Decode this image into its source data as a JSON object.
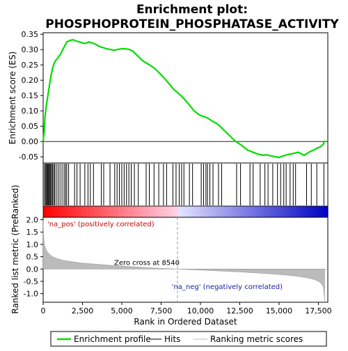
{
  "chart_data": {
    "type": "line",
    "title_line1": "Enrichment plot:",
    "title_line2": "PHOSPHOPROTEIN_PHOSPHATASE_ACTIVITY",
    "es_panel": {
      "ylabel": "Enrichment score (ES)",
      "ylim": [
        -0.07,
        0.355
      ],
      "yticks": [
        -0.05,
        0.0,
        0.05,
        0.1,
        0.15,
        0.2,
        0.25,
        0.3,
        0.35
      ],
      "ytick_labels": [
        "-0.05",
        "0.00",
        "0.05",
        "0.10",
        "0.15",
        "0.20",
        "0.25",
        "0.30",
        "0.35"
      ],
      "series": [
        {
          "color": "#00dd00",
          "x": [
            0,
            60,
            120,
            180,
            240,
            300,
            360,
            420,
            480,
            540,
            600,
            700,
            800,
            900,
            1000,
            1100,
            1200,
            1300,
            1400,
            1500,
            1700,
            1900,
            2100,
            2300,
            2500,
            2700,
            2900,
            3100,
            3300,
            3500,
            3700,
            3900,
            4100,
            4300,
            4500,
            4700,
            4900,
            5100,
            5300,
            5500,
            5700,
            5900,
            6100,
            6300,
            6500,
            6700,
            6900,
            7100,
            7300,
            7500,
            7700,
            7900,
            8100,
            8300,
            8540,
            8800,
            9000,
            9200,
            9400,
            9600,
            9800,
            10000,
            10200,
            10400,
            10600,
            10800,
            11000,
            11200,
            11400,
            11600,
            11800,
            12000,
            12200,
            12400,
            12600,
            12800,
            13000,
            13200,
            13400,
            13600,
            13800,
            14000,
            14200,
            14400,
            14600,
            14800,
            15000,
            15200,
            15400,
            15600,
            15800,
            16000,
            16200,
            16400,
            16600,
            16800,
            17000,
            17200,
            17400,
            17600,
            17800,
            17900
          ],
          "y": [
            0.0,
            0.03,
            0.08,
            0.11,
            0.13,
            0.15,
            0.17,
            0.19,
            0.21,
            0.225,
            0.24,
            0.255,
            0.265,
            0.27,
            0.278,
            0.285,
            0.295,
            0.305,
            0.315,
            0.325,
            0.33,
            0.332,
            0.328,
            0.325,
            0.322,
            0.32,
            0.325,
            0.322,
            0.318,
            0.312,
            0.308,
            0.305,
            0.302,
            0.3,
            0.298,
            0.3,
            0.302,
            0.303,
            0.302,
            0.3,
            0.295,
            0.285,
            0.275,
            0.265,
            0.258,
            0.252,
            0.245,
            0.238,
            0.228,
            0.218,
            0.207,
            0.195,
            0.183,
            0.17,
            0.16,
            0.148,
            0.137,
            0.125,
            0.113,
            0.1,
            0.092,
            0.085,
            0.082,
            0.078,
            0.072,
            0.065,
            0.06,
            0.052,
            0.042,
            0.032,
            0.022,
            0.012,
            0.002,
            -0.005,
            -0.012,
            -0.02,
            -0.028,
            -0.032,
            -0.036,
            -0.04,
            -0.043,
            -0.045,
            -0.043,
            -0.046,
            -0.048,
            -0.05,
            -0.052,
            -0.048,
            -0.045,
            -0.042,
            -0.04,
            -0.038,
            -0.035,
            -0.04,
            -0.045,
            -0.038,
            -0.032,
            -0.028,
            -0.022,
            -0.018,
            -0.01,
            0.003
          ]
        }
      ],
      "hits": [
        80,
        150,
        210,
        260,
        310,
        360,
        410,
        470,
        530,
        590,
        660,
        730,
        830,
        950,
        1070,
        1200,
        1330,
        1420,
        1500,
        1620,
        2000,
        2150,
        2350,
        2650,
        2850,
        3000,
        3200,
        3700,
        3850,
        4250,
        4550,
        4700,
        4850,
        5000,
        5150,
        5300,
        5450,
        5600,
        5800,
        6050,
        6550,
        6750,
        7050,
        7350,
        7650,
        7850,
        8250,
        8450,
        8650,
        8800,
        8950,
        9300,
        9500,
        10050,
        10200,
        10350,
        10450,
        10600,
        10800,
        11150,
        11350,
        12300,
        12550,
        13150,
        13350,
        13800,
        14100,
        14300,
        14600,
        14900,
        15100,
        15300,
        15450,
        15700,
        15900,
        16050,
        16750,
        17050,
        17400,
        17850
      ]
    },
    "metric_panel": {
      "ylabel": "Ranked list metric (PreRanked)",
      "xlabel": "Rank in Ordered Dataset",
      "xlim": [
        0,
        18100
      ],
      "ylim": [
        -1.35,
        2.1
      ],
      "yticks": [
        -1.0,
        -0.5,
        0.0,
        0.5,
        1.0,
        1.5,
        2.0
      ],
      "ytick_labels": [
        "-1.0",
        "-0.5",
        "0.0",
        "0.5",
        "1.0",
        "1.5",
        "2.0"
      ],
      "xticks": [
        0,
        2500,
        5000,
        7500,
        10000,
        12500,
        15000,
        17500
      ],
      "xtick_labels": [
        "0",
        "2,500",
        "5,000",
        "7,500",
        "10,000",
        "12,500",
        "15,000",
        "17,500"
      ],
      "zero_cross": 8540,
      "zero_cross_label": "Zero cross at 8540",
      "pos_label": "'na_pos' (positively correlated)",
      "neg_label": "'na_neg' (negatively correlated)",
      "profile_x": [
        0,
        30,
        80,
        150,
        250,
        400,
        600,
        900,
        1300,
        1800,
        2500,
        3500,
        4500,
        5500,
        6500,
        7500,
        8540,
        9500,
        10500,
        11500,
        12500,
        13500,
        14500,
        15500,
        16200,
        16800,
        17200,
        17500,
        17700,
        17800,
        17850,
        17900
      ],
      "profile_y": [
        2.0,
        1.3,
        1.0,
        0.85,
        0.72,
        0.6,
        0.5,
        0.42,
        0.35,
        0.3,
        0.24,
        0.19,
        0.14,
        0.1,
        0.06,
        0.03,
        0.0,
        -0.03,
        -0.06,
        -0.09,
        -0.12,
        -0.16,
        -0.2,
        -0.25,
        -0.3,
        -0.36,
        -0.42,
        -0.5,
        -0.6,
        -0.72,
        -0.9,
        -1.3
      ]
    },
    "legend": {
      "items": [
        {
          "label": "Enrichment profile",
          "color": "#00dd00"
        },
        {
          "label": "Hits",
          "color": "#000000"
        },
        {
          "label": "Ranking metric scores",
          "color": "#bbbbbb"
        }
      ]
    }
  }
}
